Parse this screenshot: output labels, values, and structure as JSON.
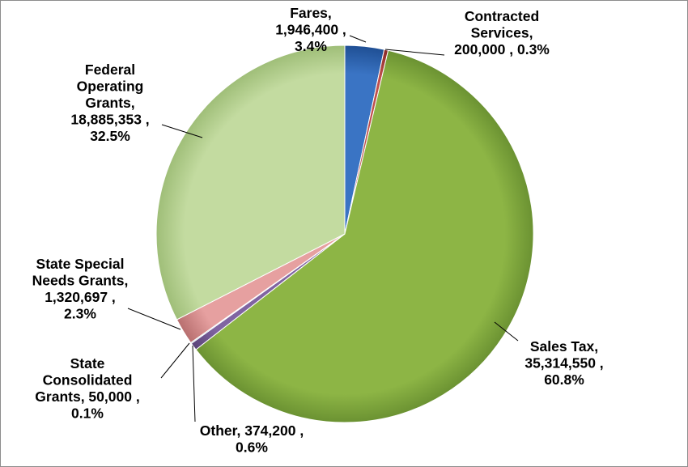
{
  "chart_data": {
    "type": "pie",
    "title": "",
    "slices": [
      {
        "key": "fares",
        "lines": [
          "Fares,",
          "1,946,400 ,",
          "3.4%"
        ],
        "value": 1946400,
        "percent": 3.4,
        "color": "#3a74c4",
        "color_dark": "#1f4f94",
        "label_color": "#000000"
      },
      {
        "key": "contracted-services",
        "lines": [
          "Contracted",
          "Services,",
          "200,000 , 0.3%"
        ],
        "value": 200000,
        "percent": 0.3,
        "color": "#c0504d",
        "color_dark": "#8a2a27",
        "label_color": "#000000"
      },
      {
        "key": "sales-tax",
        "lines": [
          "Sales Tax,",
          "35,314,550 ,",
          "60.8%"
        ],
        "value": 35314550,
        "percent": 60.8,
        "color": "#8db545",
        "color_dark": "#6b9232",
        "label_color": "#000000"
      },
      {
        "key": "other",
        "lines": [
          "Other,  374,200 ,",
          "0.6%"
        ],
        "value": 374200,
        "percent": 0.6,
        "color": "#8064a2",
        "color_dark": "#5a4478",
        "label_color": "#000000"
      },
      {
        "key": "state-consolidated-grants",
        "lines": [
          "State",
          "Consolidated",
          "Grants,  50,000 ,",
          "0.1%"
        ],
        "value": 50000,
        "percent": 0.1,
        "color": "#4bacc6",
        "color_dark": "#2b7f96",
        "label_color": "#000000"
      },
      {
        "key": "state-special-needs-grants",
        "lines": [
          "State Special",
          "Needs Grants,",
          "1,320,697 ,",
          "2.3%"
        ],
        "value": 1320697,
        "percent": 2.3,
        "color": "#e6a0a0",
        "color_dark": "#b86f6f",
        "label_color": "#000000"
      },
      {
        "key": "federal-operating-grants",
        "lines": [
          "Federal",
          "Operating",
          "Grants,",
          "18,885,353 ,",
          "32.5%"
        ],
        "value": 18885353,
        "percent": 32.5,
        "color": "#c3dba0",
        "color_dark": "#9fbe78",
        "label_color": "#000000"
      }
    ],
    "legend": "none"
  }
}
